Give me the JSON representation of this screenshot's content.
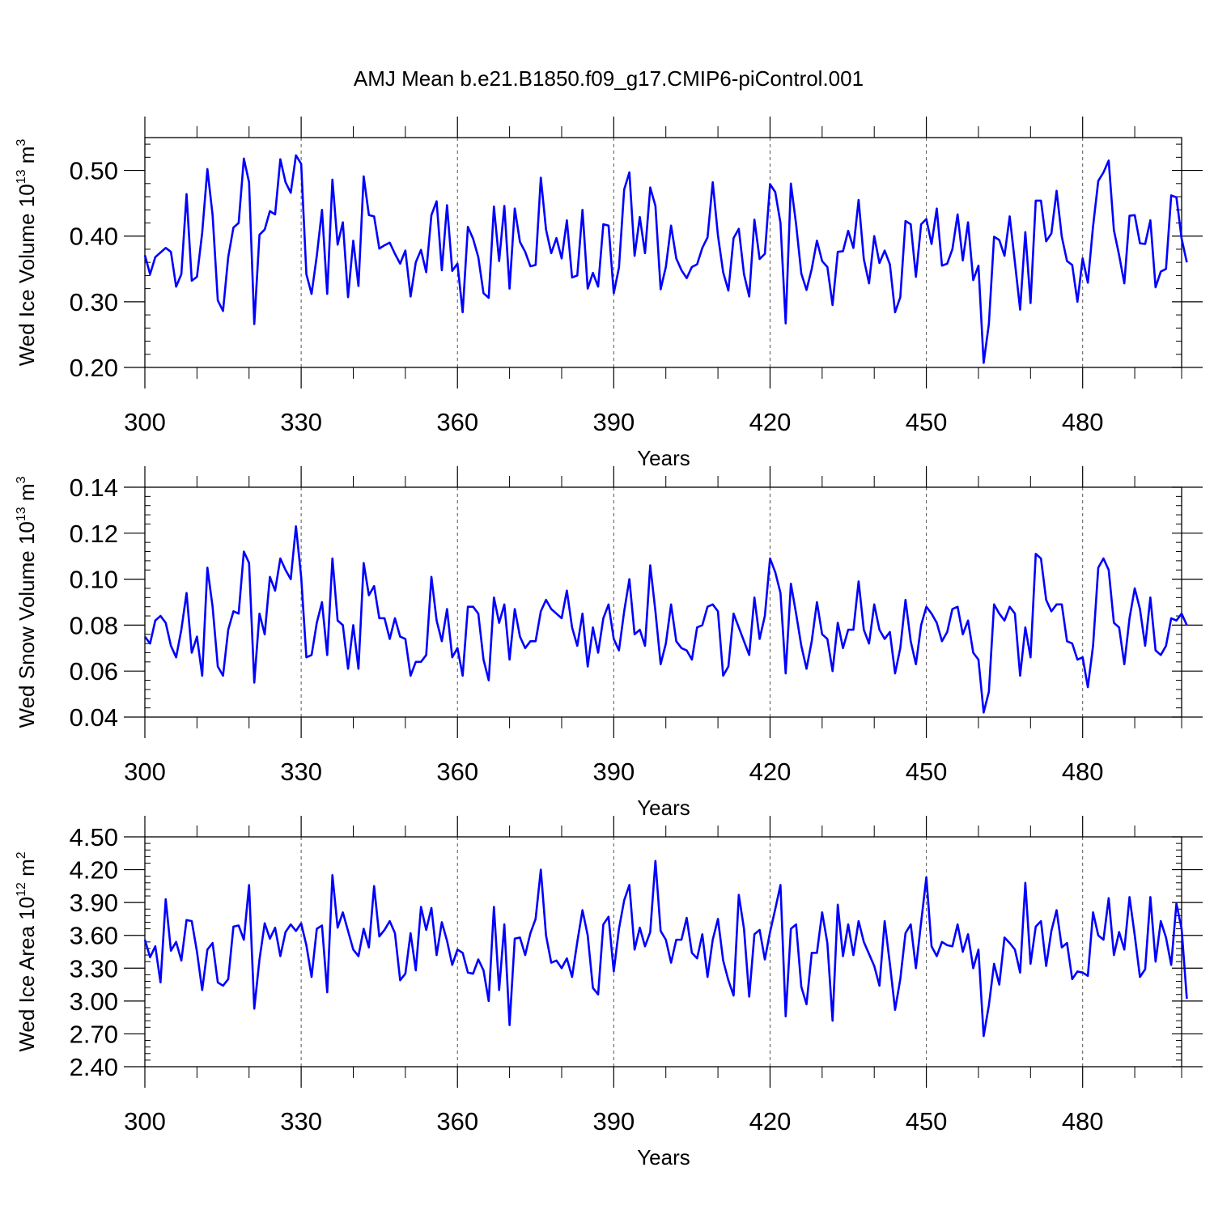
{
  "title": "AMJ Mean b.e21.B1850.f09_g17.CMIP6-piControl.001",
  "colors": {
    "series": "#0000ff",
    "axes": "#000000",
    "grid": "#555555"
  },
  "chart_data": [
    {
      "type": "line",
      "ylabel_parts": [
        "Wed Ice Volume 10",
        "13",
        " m",
        "3"
      ],
      "xlabel": "Years",
      "xlim": [
        300,
        499
      ],
      "ylim": [
        0.2,
        0.55
      ],
      "xticks": [
        300,
        330,
        360,
        390,
        420,
        450,
        480
      ],
      "xtick_labels": [
        "300",
        "330",
        "360",
        "390",
        "420",
        "450",
        "480"
      ],
      "yticks": [
        0.2,
        0.3,
        0.4,
        0.5
      ],
      "ytick_labels": [
        "0.20",
        "0.30",
        "0.40",
        "0.50"
      ],
      "series": [
        {
          "name": "Wed Ice Volume",
          "x_start": 300,
          "values": [
            0.371,
            0.342,
            0.368,
            0.375,
            0.382,
            0.376,
            0.323,
            0.342,
            0.464,
            0.332,
            0.338,
            0.405,
            0.502,
            0.432,
            0.302,
            0.286,
            0.368,
            0.413,
            0.42,
            0.518,
            0.482,
            0.266,
            0.402,
            0.41,
            0.438,
            0.433,
            0.517,
            0.482,
            0.466,
            0.523,
            0.51,
            0.342,
            0.312,
            0.37,
            0.44,
            0.312,
            0.486,
            0.387,
            0.421,
            0.307,
            0.393,
            0.324,
            0.491,
            0.432,
            0.43,
            0.381,
            0.386,
            0.39,
            0.373,
            0.358,
            0.378,
            0.308,
            0.36,
            0.379,
            0.345,
            0.432,
            0.453,
            0.348,
            0.447,
            0.347,
            0.358,
            0.284,
            0.414,
            0.396,
            0.368,
            0.313,
            0.306,
            0.445,
            0.362,
            0.446,
            0.32,
            0.442,
            0.391,
            0.376,
            0.354,
            0.356,
            0.489,
            0.41,
            0.374,
            0.397,
            0.366,
            0.424,
            0.337,
            0.34,
            0.44,
            0.32,
            0.344,
            0.323,
            0.418,
            0.416,
            0.313,
            0.352,
            0.471,
            0.497,
            0.37,
            0.429,
            0.374,
            0.474,
            0.446,
            0.319,
            0.353,
            0.416,
            0.366,
            0.348,
            0.336,
            0.353,
            0.357,
            0.382,
            0.398,
            0.482,
            0.401,
            0.345,
            0.317,
            0.397,
            0.411,
            0.342,
            0.308,
            0.425,
            0.365,
            0.373,
            0.479,
            0.467,
            0.42,
            0.267,
            0.48,
            0.418,
            0.343,
            0.318,
            0.35,
            0.393,
            0.362,
            0.353,
            0.295,
            0.376,
            0.377,
            0.408,
            0.382,
            0.455,
            0.365,
            0.328,
            0.4,
            0.359,
            0.378,
            0.357,
            0.284,
            0.307,
            0.423,
            0.418,
            0.338,
            0.418,
            0.426,
            0.388,
            0.442,
            0.355,
            0.358,
            0.38,
            0.433,
            0.363,
            0.421,
            0.333,
            0.355,
            0.207,
            0.266,
            0.399,
            0.394,
            0.37,
            0.43,
            0.36,
            0.288,
            0.406,
            0.298,
            0.454,
            0.454,
            0.392,
            0.404,
            0.469,
            0.399,
            0.362,
            0.356,
            0.3,
            0.366,
            0.329,
            0.415,
            0.484,
            0.497,
            0.515,
            0.409,
            0.371,
            0.328,
            0.431,
            0.432,
            0.389,
            0.388,
            0.424,
            0.322,
            0.346,
            0.35,
            0.462,
            0.459,
            0.396,
            0.36
          ]
        }
      ]
    },
    {
      "type": "line",
      "ylabel_parts": [
        "Wed Snow Volume 10",
        "13",
        " m",
        "3"
      ],
      "xlabel": "Years",
      "xlim": [
        300,
        499
      ],
      "ylim": [
        0.04,
        0.14
      ],
      "xticks": [
        300,
        330,
        360,
        390,
        420,
        450,
        480
      ],
      "xtick_labels": [
        "300",
        "330",
        "360",
        "390",
        "420",
        "450",
        "480"
      ],
      "yticks": [
        0.04,
        0.06,
        0.08,
        0.1,
        0.12,
        0.14
      ],
      "ytick_labels": [
        "0.04",
        "0.06",
        "0.08",
        "0.10",
        "0.12",
        "0.14"
      ],
      "series": [
        {
          "name": "Wed Snow Volume",
          "x_start": 300,
          "values": [
            0.075,
            0.072,
            0.082,
            0.084,
            0.081,
            0.071,
            0.066,
            0.078,
            0.094,
            0.068,
            0.075,
            0.058,
            0.105,
            0.088,
            0.062,
            0.058,
            0.078,
            0.086,
            0.085,
            0.112,
            0.107,
            0.055,
            0.085,
            0.076,
            0.101,
            0.095,
            0.109,
            0.104,
            0.1,
            0.123,
            0.101,
            0.066,
            0.067,
            0.081,
            0.09,
            0.067,
            0.109,
            0.082,
            0.08,
            0.061,
            0.08,
            0.061,
            0.107,
            0.093,
            0.097,
            0.083,
            0.083,
            0.074,
            0.083,
            0.075,
            0.074,
            0.058,
            0.064,
            0.064,
            0.067,
            0.101,
            0.082,
            0.073,
            0.087,
            0.066,
            0.07,
            0.058,
            0.088,
            0.088,
            0.085,
            0.065,
            0.056,
            0.092,
            0.081,
            0.089,
            0.065,
            0.087,
            0.075,
            0.07,
            0.073,
            0.073,
            0.086,
            0.091,
            0.087,
            0.085,
            0.083,
            0.095,
            0.079,
            0.071,
            0.085,
            0.062,
            0.079,
            0.068,
            0.083,
            0.089,
            0.074,
            0.069,
            0.086,
            0.1,
            0.076,
            0.078,
            0.071,
            0.106,
            0.086,
            0.063,
            0.072,
            0.089,
            0.073,
            0.07,
            0.069,
            0.065,
            0.079,
            0.08,
            0.088,
            0.089,
            0.086,
            0.058,
            0.062,
            0.085,
            0.079,
            0.073,
            0.067,
            0.092,
            0.074,
            0.084,
            0.109,
            0.103,
            0.094,
            0.059,
            0.098,
            0.085,
            0.071,
            0.061,
            0.073,
            0.09,
            0.076,
            0.074,
            0.06,
            0.081,
            0.07,
            0.078,
            0.078,
            0.099,
            0.078,
            0.072,
            0.089,
            0.078,
            0.074,
            0.077,
            0.059,
            0.07,
            0.091,
            0.073,
            0.063,
            0.08,
            0.088,
            0.085,
            0.081,
            0.073,
            0.077,
            0.087,
            0.088,
            0.076,
            0.082,
            0.068,
            0.065,
            0.042,
            0.051,
            0.089,
            0.085,
            0.082,
            0.088,
            0.085,
            0.058,
            0.079,
            0.066,
            0.111,
            0.109,
            0.091,
            0.086,
            0.089,
            0.089,
            0.073,
            0.072,
            0.065,
            0.066,
            0.053,
            0.071,
            0.105,
            0.109,
            0.104,
            0.081,
            0.079,
            0.063,
            0.083,
            0.096,
            0.087,
            0.071,
            0.092,
            0.069,
            0.067,
            0.071,
            0.083,
            0.082,
            0.085,
            0.08
          ]
        }
      ]
    },
    {
      "type": "line",
      "ylabel_parts": [
        "Wed Ice Area 10",
        "12",
        " m",
        "2"
      ],
      "xlabel": "Years",
      "xlim": [
        300,
        499
      ],
      "ylim": [
        2.4,
        4.5
      ],
      "xticks": [
        300,
        330,
        360,
        390,
        420,
        450,
        480
      ],
      "xtick_labels": [
        "300",
        "330",
        "360",
        "390",
        "420",
        "450",
        "480"
      ],
      "yticks": [
        2.4,
        2.7,
        3.0,
        3.3,
        3.6,
        3.9,
        4.2,
        4.5
      ],
      "ytick_labels": [
        "2.40",
        "2.70",
        "3.00",
        "3.30",
        "3.60",
        "3.90",
        "4.20",
        "4.50"
      ],
      "series": [
        {
          "name": "Wed Ice Area",
          "x_start": 300,
          "values": [
            3.56,
            3.4,
            3.5,
            3.17,
            3.93,
            3.46,
            3.54,
            3.37,
            3.74,
            3.73,
            3.45,
            3.1,
            3.47,
            3.53,
            3.17,
            3.14,
            3.2,
            3.68,
            3.69,
            3.56,
            4.06,
            2.93,
            3.38,
            3.71,
            3.57,
            3.67,
            3.41,
            3.63,
            3.7,
            3.64,
            3.71,
            3.51,
            3.22,
            3.66,
            3.69,
            3.08,
            4.15,
            3.67,
            3.81,
            3.64,
            3.47,
            3.41,
            3.66,
            3.49,
            4.05,
            3.59,
            3.65,
            3.73,
            3.62,
            3.19,
            3.25,
            3.62,
            3.28,
            3.86,
            3.65,
            3.85,
            3.42,
            3.72,
            3.55,
            3.33,
            3.47,
            3.44,
            3.26,
            3.25,
            3.38,
            3.28,
            3.0,
            3.86,
            3.1,
            3.7,
            2.78,
            3.57,
            3.58,
            3.42,
            3.62,
            3.75,
            4.2,
            3.6,
            3.35,
            3.37,
            3.3,
            3.39,
            3.22,
            3.54,
            3.83,
            3.6,
            3.12,
            3.06,
            3.7,
            3.77,
            3.27,
            3.66,
            3.92,
            4.06,
            3.47,
            3.67,
            3.5,
            3.63,
            4.28,
            3.64,
            3.56,
            3.35,
            3.56,
            3.56,
            3.76,
            3.44,
            3.39,
            3.61,
            3.22,
            3.56,
            3.75,
            3.37,
            3.19,
            3.05,
            3.97,
            3.66,
            3.04,
            3.61,
            3.65,
            3.38,
            3.63,
            3.84,
            4.06,
            2.86,
            3.66,
            3.7,
            3.13,
            2.97,
            3.44,
            3.44,
            3.81,
            3.53,
            2.82,
            3.88,
            3.41,
            3.7,
            3.42,
            3.73,
            3.54,
            3.43,
            3.32,
            3.14,
            3.73,
            3.34,
            2.92,
            3.2,
            3.62,
            3.7,
            3.3,
            3.72,
            4.13,
            3.5,
            3.41,
            3.54,
            3.51,
            3.5,
            3.7,
            3.45,
            3.61,
            3.3,
            3.47,
            2.68,
            2.96,
            3.34,
            3.15,
            3.58,
            3.53,
            3.47,
            3.26,
            4.08,
            3.34,
            3.68,
            3.73,
            3.32,
            3.64,
            3.83,
            3.49,
            3.53,
            3.2,
            3.27,
            3.26,
            3.23,
            3.81,
            3.6,
            3.56,
            3.94,
            3.42,
            3.63,
            3.47,
            3.95,
            3.6,
            3.22,
            3.29,
            3.95,
            3.36,
            3.73,
            3.58,
            3.33,
            3.89,
            3.66,
            3.02
          ]
        }
      ]
    }
  ]
}
